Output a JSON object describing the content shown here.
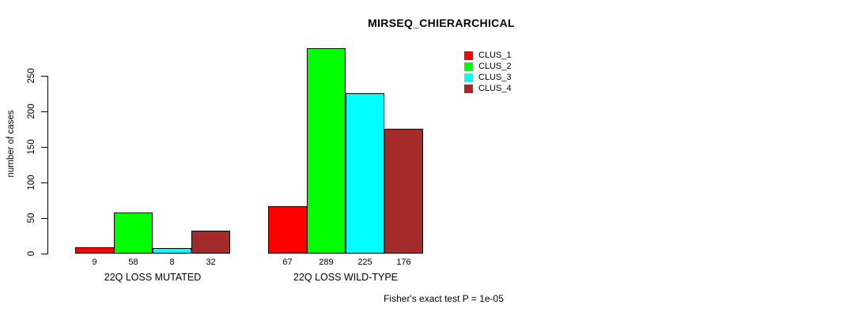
{
  "chart_data": {
    "type": "bar",
    "title": "MIRSEQ_CHIERARCHICAL",
    "ylabel": "number of cases",
    "footnote": "Fisher's exact test P = 1e-05",
    "categories": [
      "22Q LOSS MUTATED",
      "22Q LOSS WILD-TYPE"
    ],
    "series": [
      {
        "name": "CLUS_1",
        "color": "#ff0000",
        "values": [
          9,
          67
        ]
      },
      {
        "name": "CLUS_2",
        "color": "#00ff00",
        "values": [
          58,
          289
        ]
      },
      {
        "name": "CLUS_3",
        "color": "#00ffff",
        "values": [
          8,
          225
        ]
      },
      {
        "name": "CLUS_4",
        "color": "#a52a2a",
        "values": [
          32,
          176
        ]
      }
    ],
    "yticks": [
      0,
      50,
      100,
      150,
      200,
      250
    ],
    "ylim": [
      0,
      290
    ],
    "grid": false,
    "legend_position": "top-right",
    "bar_value_labels_shown": true,
    "background": "#ffffff",
    "axis_color": "#000000"
  }
}
